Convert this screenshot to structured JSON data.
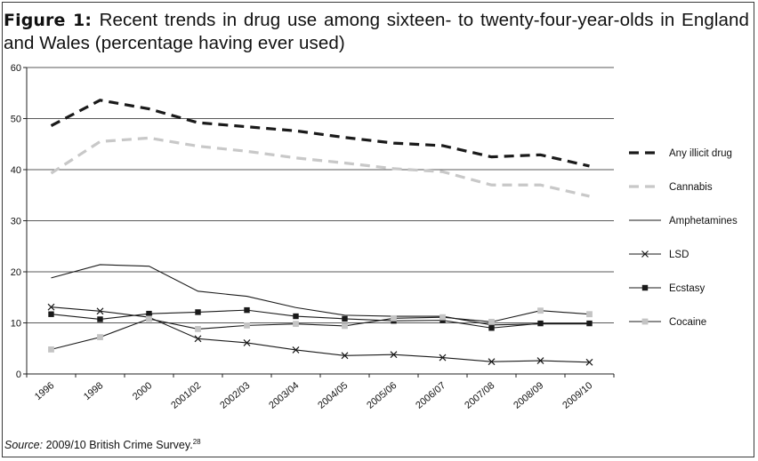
{
  "figure": {
    "label": "Figure 1:",
    "caption": "Recent trends in drug use among sixteen- to twenty-four-year-olds in England and Wales (percentage having ever used)"
  },
  "source": {
    "label": "Source:",
    "text": "2009/10 British Crime Survey.",
    "ref": "28"
  },
  "chart_data": {
    "type": "line",
    "categories": [
      "1996",
      "1998",
      "2000",
      "2001/02",
      "2002/03",
      "2003/04",
      "2004/05",
      "2005/06",
      "2006/07",
      "2007/08",
      "2008/09",
      "2009/10"
    ],
    "ylim": [
      0,
      60
    ],
    "yticks": [
      "0",
      "10",
      "20",
      "30",
      "40",
      "50",
      "60"
    ],
    "grid": "horizontal",
    "legend_position": "right",
    "series": [
      {
        "name": "Any illicit drug",
        "color": "#1a1a1a",
        "style": "dashed-bold",
        "marker": "none",
        "values": [
          48.6,
          53.6,
          51.9,
          49.2,
          48.4,
          47.6,
          46.3,
          45.2,
          44.7,
          42.5,
          42.9,
          40.7
        ]
      },
      {
        "name": "Cannabis",
        "color": "#c8c8c8",
        "style": "dashed-bold",
        "marker": "none",
        "values": [
          39.3,
          45.5,
          46.2,
          44.6,
          43.6,
          42.3,
          41.3,
          40.2,
          39.6,
          37.0,
          37.0,
          34.8
        ]
      },
      {
        "name": "Amphetamines",
        "color": "#1a1a1a",
        "style": "solid-thin",
        "marker": "none",
        "values": [
          18.8,
          21.4,
          21.1,
          16.2,
          15.2,
          13.0,
          11.5,
          11.3,
          11.3,
          9.6,
          9.8,
          9.8
        ]
      },
      {
        "name": "LSD",
        "color": "#1a1a1a",
        "style": "solid-thin",
        "marker": "x",
        "values": [
          13.1,
          12.3,
          11.1,
          6.9,
          6.1,
          4.7,
          3.6,
          3.8,
          3.2,
          2.4,
          2.6,
          2.3
        ]
      },
      {
        "name": "Ecstasy",
        "color": "#1a1a1a",
        "style": "solid-thin",
        "marker": "square-dark",
        "values": [
          11.7,
          10.7,
          11.8,
          12.1,
          12.5,
          11.3,
          10.8,
          10.4,
          10.5,
          9.0,
          9.9,
          9.9
        ]
      },
      {
        "name": "Cocaine",
        "color": "#1a1a1a",
        "style": "solid-thin",
        "marker": "square-light",
        "values": [
          4.8,
          7.2,
          10.8,
          8.8,
          9.5,
          9.8,
          9.4,
          10.9,
          11.1,
          10.2,
          12.4,
          11.7
        ]
      }
    ]
  }
}
